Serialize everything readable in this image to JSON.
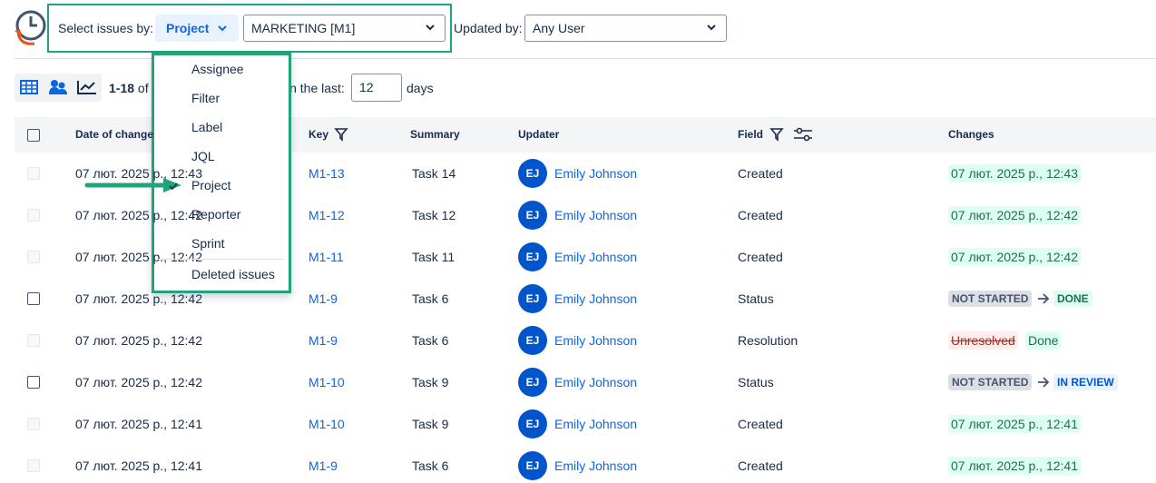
{
  "toolbar": {
    "select_label": "Select issues by:",
    "select_by": "Project",
    "project": "MARKETING [M1]",
    "updated_by_label": "Updated by:",
    "updated_by": "Any User"
  },
  "summary": {
    "range": "1-18",
    "of": "of",
    "in_last": "in the last:",
    "days_value": "12",
    "days": "days"
  },
  "table": {
    "headers": [
      "Date of change",
      "Key",
      "Summary",
      "Updater",
      "Field",
      "Changes"
    ],
    "rows": [
      {
        "selectable": false,
        "date": "07 лют. 2025 р., 12:43",
        "key": "M1-13",
        "summary": "Task 14",
        "initials": "EJ",
        "updater": "Emily Johnson",
        "field": "Created",
        "change": {
          "value": "07 лют. 2025 р., 12:43"
        }
      },
      {
        "selectable": false,
        "date": "07 лют. 2025 р., 12:42",
        "key": "M1-12",
        "summary": "Task 12",
        "initials": "EJ",
        "updater": "Emily Johnson",
        "field": "Created",
        "change": {
          "value": "07 лют. 2025 р., 12:42"
        }
      },
      {
        "selectable": false,
        "date": "07 лют. 2025 р., 12:42",
        "key": "M1-11",
        "summary": "Task 11",
        "initials": "EJ",
        "updater": "Emily Johnson",
        "field": "Created",
        "change": {
          "value": "07 лют. 2025 р., 12:42"
        }
      },
      {
        "selectable": true,
        "date": "07 лют. 2025 р., 12:42",
        "key": "M1-9",
        "summary": "Task 6",
        "initials": "EJ",
        "updater": "Emily Johnson",
        "field": "Status",
        "change": {
          "from": "NOT STARTED",
          "to": "DONE",
          "arrow": true,
          "to_color": "green"
        }
      },
      {
        "selectable": false,
        "date": "07 лют. 2025 р., 12:42",
        "key": "M1-9",
        "summary": "Task 6",
        "initials": "EJ",
        "updater": "Emily Johnson",
        "field": "Resolution",
        "change": {
          "from": "Unresolved",
          "to": "Done",
          "arrow": false,
          "to_color": "green"
        }
      },
      {
        "selectable": true,
        "date": "07 лют. 2025 р., 12:42",
        "key": "M1-10",
        "summary": "Task 9",
        "initials": "EJ",
        "updater": "Emily Johnson",
        "field": "Status",
        "change": {
          "from": "NOT STARTED",
          "to": "IN REVIEW",
          "arrow": true,
          "to_color": "blue"
        }
      },
      {
        "selectable": false,
        "date": "07 лют. 2025 р., 12:41",
        "key": "M1-10",
        "summary": "Task 9",
        "initials": "EJ",
        "updater": "Emily Johnson",
        "field": "Created",
        "change": {
          "value": "07 лют. 2025 р., 12:41"
        }
      },
      {
        "selectable": false,
        "date": "07 лют. 2025 р., 12:41",
        "key": "M1-9",
        "summary": "Task 6",
        "initials": "EJ",
        "updater": "Emily Johnson",
        "field": "Created",
        "change": {
          "value": "07 лют. 2025 р., 12:41"
        }
      }
    ]
  },
  "dropdown": {
    "items": [
      "Assignee",
      "Filter",
      "Label",
      "JQL",
      "Project",
      "Reporter",
      "Sprint"
    ],
    "checked": 4,
    "extra": "Deleted issues"
  }
}
